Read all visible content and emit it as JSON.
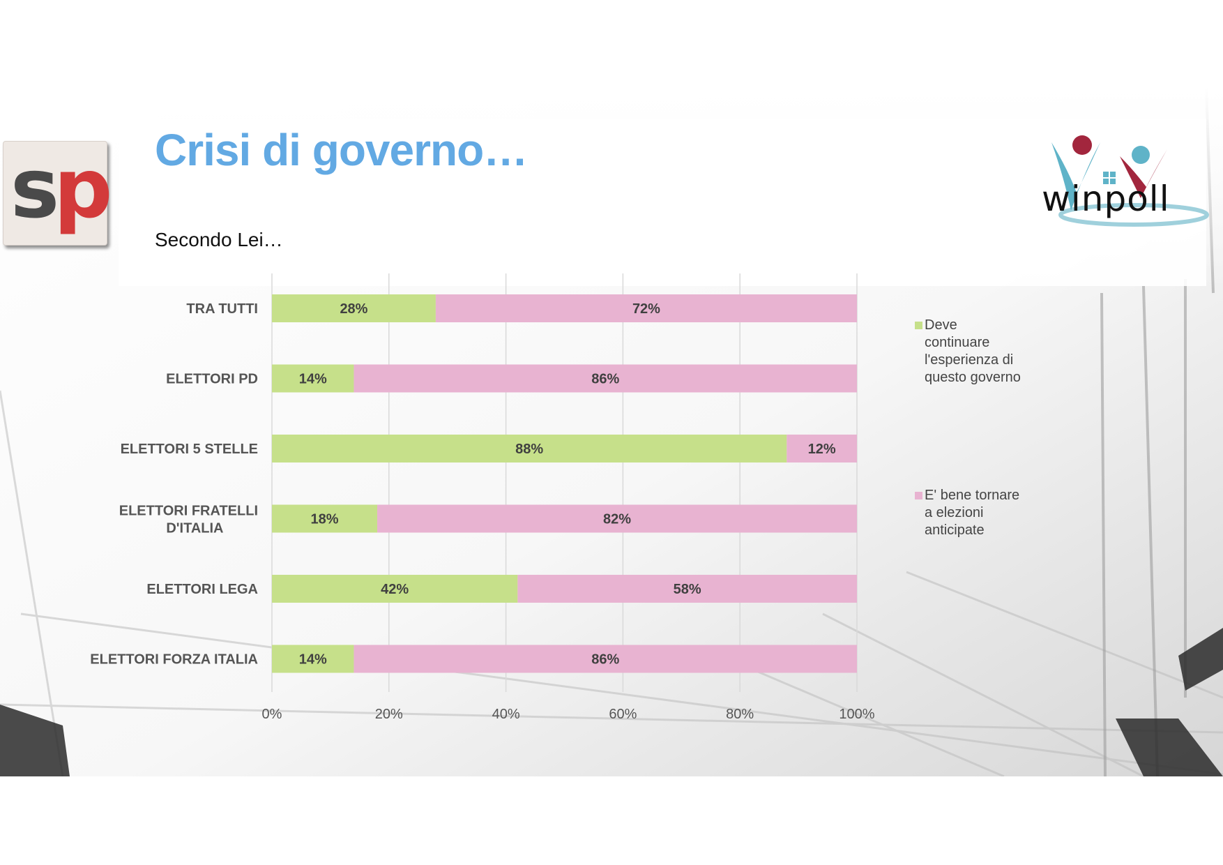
{
  "slide": {
    "title": "Crisi di governo…",
    "subtitle": "Secondo Lei…",
    "logos": {
      "left": "sp-logo",
      "left_text_s": "s",
      "left_text_p": "p",
      "right": "winpoll-logo",
      "right_text": "winpoll"
    }
  },
  "colors": {
    "title": "#62a9e3",
    "series_green": "#c6e08a",
    "series_pink": "#e8b3d1",
    "grid": "#d9d9d9",
    "text": "#555555"
  },
  "chart_data": {
    "type": "bar",
    "orientation": "horizontal",
    "stacked": "100%",
    "categories": [
      "TRA TUTTI",
      "ELETTORI PD",
      "ELETTORI 5 STELLE",
      "ELETTORI FRATELLI D'ITALIA",
      "ELETTORI LEGA",
      "ELETTORI FORZA ITALIA"
    ],
    "series": [
      {
        "name": "Deve continuare l'esperienza di questo governo",
        "color": "#c6e08a",
        "values": [
          28,
          14,
          88,
          18,
          42,
          14
        ],
        "labels": [
          "28%",
          "14%",
          "88%",
          "18%",
          "42%",
          "14%"
        ]
      },
      {
        "name": "E' bene tornare a elezioni anticipate",
        "color": "#e8b3d1",
        "values": [
          72,
          86,
          12,
          82,
          58,
          86
        ],
        "labels": [
          "72%",
          "86%",
          "12%",
          "82%",
          "58%",
          "86%"
        ]
      }
    ],
    "xlim": [
      0,
      100
    ],
    "xticks": [
      "0%",
      "20%",
      "40%",
      "60%",
      "80%",
      "100%"
    ],
    "grid": true,
    "legend": "right"
  }
}
